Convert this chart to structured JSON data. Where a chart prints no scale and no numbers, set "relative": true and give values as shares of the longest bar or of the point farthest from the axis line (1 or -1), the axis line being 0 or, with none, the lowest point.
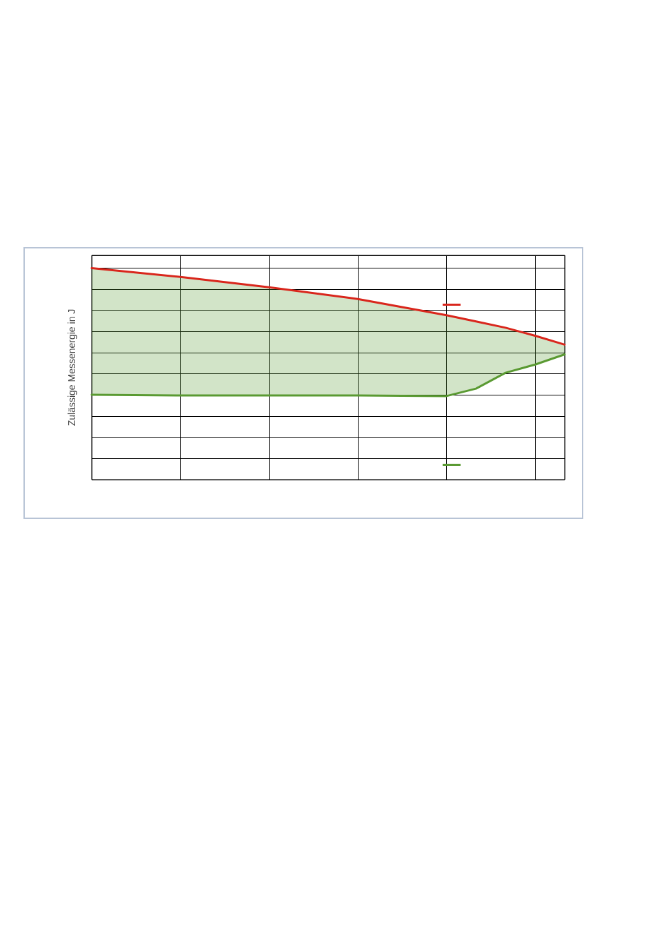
{
  "chart_data": {
    "type": "line",
    "ylabel": "Zulässige Messenergie in J",
    "relative": true,
    "grid": true,
    "marker": "none",
    "line_style": "solid",
    "categories": [
      null,
      null,
      null,
      null,
      null,
      null,
      null,
      null,
      null,
      null,
      null,
      null,
      null,
      null,
      null,
      null,
      null
    ],
    "series": [
      {
        "color": "#d9261c",
        "values": [
          1,
          null,
          null,
          0.958,
          null,
          null,
          0.909,
          null,
          null,
          0.854,
          null,
          null,
          0.777,
          0.748,
          0.718,
          0.68,
          0.638
        ]
      },
      {
        "color": "#5a9a32",
        "values": [
          0.401,
          null,
          null,
          0.398,
          null,
          null,
          0.398,
          null,
          null,
          0.398,
          null,
          null,
          0.395,
          0.43,
          0.505,
          0.544,
          0.592
        ],
        "lower": [
          0.401,
          null,
          null,
          0.398,
          null,
          null,
          0.398,
          null,
          null,
          0.398,
          null,
          null,
          0.395,
          0.43,
          0.505,
          0.544,
          0.592
        ],
        "upper": [
          1,
          null,
          null,
          0.958,
          null,
          null,
          0.909,
          null,
          null,
          0.854,
          null,
          null,
          0.777,
          0.748,
          0.718,
          0.68,
          0.638
        ]
      }
    ]
  }
}
